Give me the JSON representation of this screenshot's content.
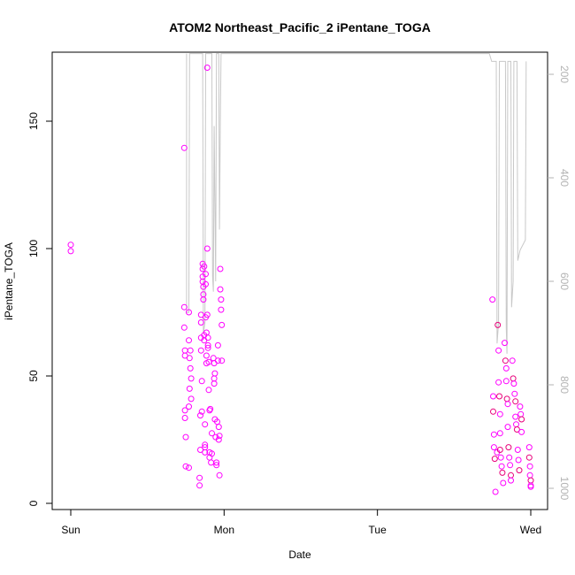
{
  "chart_data": {
    "type": "scatter",
    "title": "ATOM2 Northeast_Pacific_2 iPentane_TOGA",
    "xlabel": "Date",
    "ylabel": "iPentane_TOGA",
    "x_units": "days since Sun 00:00",
    "xlim": [
      0,
      3
    ],
    "ylim": [
      0,
      176
    ],
    "x_ticks": [
      {
        "value": 0,
        "label": "Sun"
      },
      {
        "value": 1,
        "label": "Mon"
      },
      {
        "value": 2,
        "label": "Tue"
      },
      {
        "value": 3,
        "label": "Wed"
      }
    ],
    "y_ticks": [
      0,
      50,
      100,
      150
    ],
    "y2": {
      "reversed": true,
      "ylim": [
        1030,
        160
      ],
      "ticks": [
        200,
        400,
        600,
        800,
        1000
      ],
      "color": "#b3b3b3"
    },
    "colors": {
      "points": "#ff00ff",
      "points_dark": "#e8007a",
      "pressure_line": "#c8c8c8"
    },
    "series": [
      {
        "marker": "circle-open",
        "points": [
          [
            0.0,
            101.5
          ],
          [
            0.0,
            99.0
          ],
          [
            0.74,
            139.5
          ],
          [
            0.74,
            77.0
          ],
          [
            0.74,
            69.0
          ],
          [
            0.745,
            60.0
          ],
          [
            0.745,
            58.0
          ],
          [
            0.745,
            36.5
          ],
          [
            0.745,
            33.5
          ],
          [
            0.75,
            26.0
          ],
          [
            0.75,
            14.5
          ],
          [
            0.77,
            75.0
          ],
          [
            0.77,
            64.0
          ],
          [
            0.775,
            57.0
          ],
          [
            0.775,
            45.0
          ],
          [
            0.77,
            38.0
          ],
          [
            0.77,
            14.0
          ],
          [
            0.78,
            60.0
          ],
          [
            0.78,
            53.0
          ],
          [
            0.785,
            49.0
          ],
          [
            0.785,
            41.0
          ],
          [
            0.84,
            7.0
          ],
          [
            0.84,
            10.0
          ],
          [
            0.845,
            21.0
          ],
          [
            0.845,
            34.5
          ],
          [
            0.85,
            74.0
          ],
          [
            0.85,
            71.0
          ],
          [
            0.85,
            65.0
          ],
          [
            0.85,
            60.0
          ],
          [
            0.855,
            48.0
          ],
          [
            0.855,
            36.0
          ],
          [
            0.86,
            94.0
          ],
          [
            0.86,
            92.0
          ],
          [
            0.86,
            89.0
          ],
          [
            0.86,
            87.0
          ],
          [
            0.865,
            85.0
          ],
          [
            0.865,
            82.0
          ],
          [
            0.865,
            80.0
          ],
          [
            0.87,
            93.0
          ],
          [
            0.87,
            66.0
          ],
          [
            0.87,
            64.0
          ],
          [
            0.875,
            31.0
          ],
          [
            0.875,
            23.0
          ],
          [
            0.875,
            22.0
          ],
          [
            0.875,
            20.0
          ],
          [
            0.88,
            90.0
          ],
          [
            0.88,
            86.0
          ],
          [
            0.88,
            73.0
          ],
          [
            0.885,
            67.0
          ],
          [
            0.885,
            58.0
          ],
          [
            0.885,
            55.0
          ],
          [
            0.89,
            171.0
          ],
          [
            0.89,
            100.0
          ],
          [
            0.89,
            74.0
          ],
          [
            0.895,
            65.0
          ],
          [
            0.895,
            62.0
          ],
          [
            0.895,
            61.0
          ],
          [
            0.9,
            55.5
          ],
          [
            0.9,
            44.5
          ],
          [
            0.905,
            36.5
          ],
          [
            0.905,
            20.0
          ],
          [
            0.905,
            18.0
          ],
          [
            0.91,
            37.0
          ],
          [
            0.915,
            16.0
          ],
          [
            0.92,
            27.5
          ],
          [
            0.92,
            19.5
          ],
          [
            0.93,
            57.0
          ],
          [
            0.935,
            55.0
          ],
          [
            0.935,
            49.0
          ],
          [
            0.935,
            47.0
          ],
          [
            0.94,
            51.0
          ],
          [
            0.94,
            33.0
          ],
          [
            0.945,
            26.0
          ],
          [
            0.95,
            16.0
          ],
          [
            0.95,
            15.0
          ],
          [
            0.955,
            32.0
          ],
          [
            0.96,
            62.0
          ],
          [
            0.96,
            56.0
          ],
          [
            0.965,
            30.0
          ],
          [
            0.965,
            25.0
          ],
          [
            0.97,
            26.5
          ],
          [
            0.97,
            11.0
          ],
          [
            0.975,
            92.0
          ],
          [
            0.975,
            84.0
          ],
          [
            0.98,
            80.0
          ],
          [
            0.98,
            76.0
          ],
          [
            0.985,
            70.0
          ],
          [
            0.985,
            56.0
          ],
          [
            2.75,
            80.0
          ],
          [
            2.755,
            42.0
          ],
          [
            2.755,
            36.0
          ],
          [
            2.76,
            27.0
          ],
          [
            2.76,
            22.0
          ],
          [
            2.765,
            17.5
          ],
          [
            2.77,
            4.5
          ],
          [
            2.78,
            20.0
          ],
          [
            2.785,
            70.0
          ],
          [
            2.79,
            60.0
          ],
          [
            2.79,
            47.5
          ],
          [
            2.795,
            42.0
          ],
          [
            2.8,
            35.0
          ],
          [
            2.8,
            27.5
          ],
          [
            2.8,
            21.0
          ],
          [
            2.805,
            18.0
          ],
          [
            2.81,
            14.5
          ],
          [
            2.815,
            12.0
          ],
          [
            2.82,
            8.0
          ],
          [
            2.83,
            63.0
          ],
          [
            2.835,
            56.0
          ],
          [
            2.84,
            53.0
          ],
          [
            2.84,
            48.0
          ],
          [
            2.845,
            41.0
          ],
          [
            2.85,
            39.0
          ],
          [
            2.85,
            30.0
          ],
          [
            2.855,
            22.0
          ],
          [
            2.86,
            18.0
          ],
          [
            2.865,
            15.0
          ],
          [
            2.87,
            11.0
          ],
          [
            2.87,
            9.0
          ],
          [
            2.88,
            56.0
          ],
          [
            2.885,
            49.0
          ],
          [
            2.89,
            47.0
          ],
          [
            2.895,
            43.0
          ],
          [
            2.9,
            40.0
          ],
          [
            2.9,
            34.0
          ],
          [
            2.905,
            31.0
          ],
          [
            2.91,
            29.0
          ],
          [
            2.915,
            21.0
          ],
          [
            2.92,
            17.0
          ],
          [
            2.925,
            13.0
          ],
          [
            2.93,
            38.0
          ],
          [
            2.935,
            35.0
          ],
          [
            2.94,
            33.0
          ],
          [
            2.94,
            28.0
          ],
          [
            2.99,
            22.0
          ],
          [
            2.99,
            18.0
          ],
          [
            2.995,
            14.5
          ],
          [
            2.995,
            11.0
          ],
          [
            3.0,
            9.0
          ],
          [
            3.0,
            7.0
          ],
          [
            3.0,
            6.5
          ]
        ]
      }
    ],
    "pressure_series": [
      [
        0.755,
        160
      ],
      [
        0.755,
        660
      ],
      [
        0.77,
        660
      ],
      [
        0.775,
        160
      ],
      [
        0.86,
        160
      ],
      [
        0.865,
        700
      ],
      [
        0.875,
        680
      ],
      [
        0.88,
        160
      ],
      [
        0.92,
        160
      ],
      [
        0.925,
        590
      ],
      [
        0.93,
        620
      ],
      [
        0.935,
        300
      ],
      [
        0.945,
        600
      ],
      [
        0.95,
        160
      ],
      [
        0.965,
        160
      ],
      [
        0.97,
        500
      ],
      [
        0.975,
        300
      ],
      [
        0.98,
        160
      ],
      [
        2.73,
        160
      ],
      [
        2.745,
        175
      ],
      [
        2.775,
        175
      ],
      [
        2.78,
        720
      ],
      [
        2.79,
        680
      ],
      [
        2.795,
        175
      ],
      [
        2.835,
        175
      ],
      [
        2.84,
        690
      ],
      [
        2.845,
        740
      ],
      [
        2.85,
        175
      ],
      [
        2.87,
        175
      ],
      [
        2.875,
        650
      ],
      [
        2.885,
        600
      ],
      [
        2.89,
        175
      ],
      [
        2.91,
        175
      ],
      [
        2.915,
        560
      ],
      [
        2.93,
        540
      ],
      [
        2.965,
        520
      ],
      [
        2.97,
        175
      ]
    ]
  }
}
